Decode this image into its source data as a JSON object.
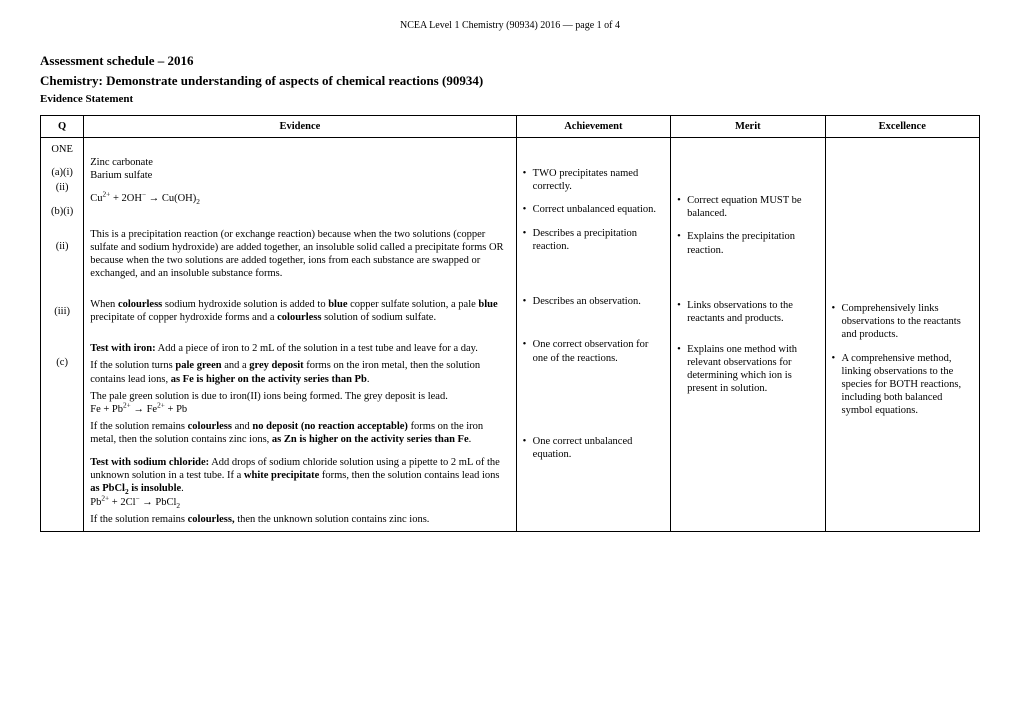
{
  "header": "NCEA Level 1 Chemistry (90934) 2016 — page 1 of 4",
  "title1": "Assessment schedule – 2016",
  "title2": "Chemistry: Demonstrate understanding of aspects of chemical reactions (90934)",
  "evidenceLabel": "Evidence Statement",
  "columns": [
    "Q",
    "Evidence",
    "Achievement",
    "Merit",
    "Excellence"
  ],
  "q": {
    "one": "ONE",
    "ai": "(a)(i)",
    "aii": "(ii)",
    "bi": "(b)(i)",
    "bii": "(ii)",
    "biii": "(iii)",
    "c": "(c)"
  },
  "ev": {
    "ai": "Zinc carbonate",
    "aii": "Barium sulfate",
    "bi_html": "Cu<sup>2+</sup> + 2OH<sup>−</sup> → Cu(OH)<sub>2</sub>",
    "bii": "This is a precipitation reaction (or exchange reaction) because when the two solutions (copper sulfate and sodium hydroxide) are added together, an insoluble solid called a precipitate forms OR because when the two solutions are added together, ions from each substance are swapped or exchanged, and an insoluble substance forms.",
    "biii_html": "When <b>colourless</b> sodium hydroxide solution is added to <b>blue</b> copper sulfate solution, a pale <b>blue</b> precipitate of copper hydroxide forms and a <b>colourless</b> solution of sodium sulfate.",
    "c_p1_html": "<b>Test with iron:</b> Add a piece of iron to 2 mL of the solution in a test tube and leave for a day.",
    "c_p2_html": "If the solution turns <b>pale green</b> and a <b>grey deposit</b> forms on the iron metal, then the solution contains lead ions, <b>as Fe is higher on the activity series than Pb</b>.",
    "c_p3_html": "The pale green solution is due to iron(II) ions being formed. The grey deposit is lead.<br>Fe + Pb<sup>2+</sup> → Fe<sup>2+</sup> + Pb",
    "c_p4_html": "If the solution remains <b>colourless</b> and <b>no deposit (no reaction acceptable)</b> forms on the iron metal, then the solution contains zinc ions, <b>as Zn is higher on the activity series than Fe</b>.",
    "c_p5_html": "<b>Test with sodium chloride:</b> Add drops of sodium chloride solution using a pipette to 2 mL of the unknown solution in a test tube. If a <b>white precipitate</b> forms, then the solution contains lead ions <b>as PbCl<sub>2</sub> is insoluble</b>.<br>Pb<sup>2+</sup> + 2Cl<sup>−</sup> → PbCl<sub>2</sub>",
    "c_p6_html": "If the solution remains <b>colourless,</b> then the unknown solution contains zinc ions."
  },
  "ach": {
    "a": "TWO precipitates named correctly.",
    "bi": "Correct unbalanced equation.",
    "bii": "Describes a precipitation reaction.",
    "biii": "Describes an observation.",
    "c1": "One correct observation for one of the reactions.",
    "c2": "One correct unbalanced equation."
  },
  "mer": {
    "bi": "Correct equation MUST be balanced.",
    "bii": "Explains the precipitation reaction.",
    "biii": "Links observations to the reactants and products.",
    "c": "Explains one method with relevant observations for determining which ion is present in solution."
  },
  "exc": {
    "biii": "Comprehensively links observations to the reactants and products.",
    "c": "A comprehensive method, linking observations to the species for BOTH reactions, including both balanced symbol equations."
  }
}
